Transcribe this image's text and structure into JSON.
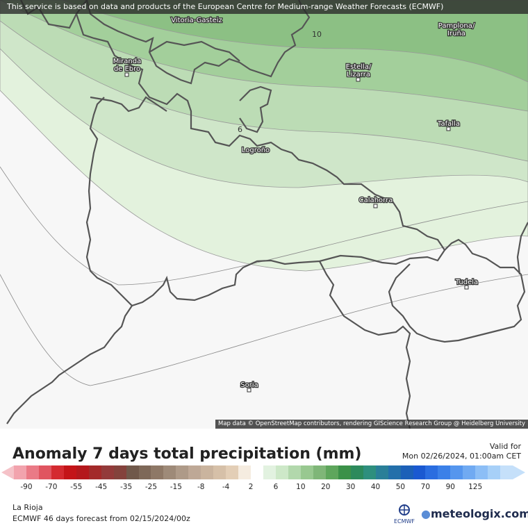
{
  "notice": "This service is based on data and products of the European Centre for Medium-range Weather Forecasts (ECMWF)",
  "credits": "Map data © OpenStreetMap contributors, rendering GIScience Research Group @ Heidelberg University",
  "places": {
    "vitoria": "Vitoria-Gasteiz",
    "pamplona_1": "Pamplona/",
    "pamplona_2": "Iruña",
    "miranda_1": "Miranda",
    "miranda_2": "de Ebro",
    "estella_1": "Estella/",
    "estella_2": "Lizarra",
    "tafalla": "Tafalla",
    "logrono": "Logroño",
    "calahorra": "Calahorra",
    "tudela": "Tudela",
    "soria": "Soria"
  },
  "contour_labels": {
    "c10": "10",
    "c6": "6"
  },
  "legend": {
    "title": "Anomaly 7 days total precipitation (mm)",
    "valid_label": "Valid for",
    "valid_date": "Mon 02/26/2024, 01:00am CET",
    "ticks": [
      "-90",
      "-70",
      "-55",
      "-45",
      "-35",
      "-25",
      "-15",
      "-8",
      "-4",
      "2",
      "6",
      "10",
      "20",
      "30",
      "40",
      "50",
      "70",
      "90",
      "125"
    ],
    "colors": [
      "#f2a3ad",
      "#ea7a86",
      "#e05560",
      "#d42a30",
      "#c41418",
      "#b4181c",
      "#a32a2a",
      "#933a3a",
      "#84423c",
      "#70584a",
      "#7e6858",
      "#8e7866",
      "#9e8a78",
      "#ae9a88",
      "#bea896",
      "#cab49e",
      "#d6c0a8",
      "#e3ceb6",
      "#f5ece0",
      "#ffffff",
      "#e2f2e0",
      "#cde8c8",
      "#b2d8ac",
      "#98c890",
      "#7fb678",
      "#5ea65c",
      "#3b9148",
      "#2c8a5c",
      "#2e8f7e",
      "#2a7f98",
      "#236faa",
      "#1c60b8",
      "#1a59d1",
      "#2a6de0",
      "#3b80e8",
      "#5596ee",
      "#70aaf2",
      "#8cbef6",
      "#a7d0f8",
      "#c5e0fa"
    ],
    "region": "La Rioja",
    "source": "ECMWF 46 days forecast from  02/15/2024/00z",
    "ecmwf": "ECMWF",
    "brand": "meteologix.com"
  }
}
